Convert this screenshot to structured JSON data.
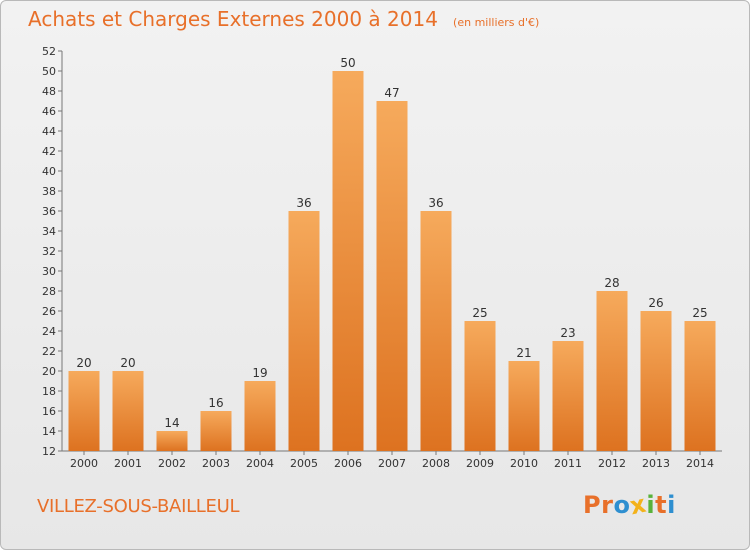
{
  "header": {
    "title": "Achats et Charges Externes 2000 à 2014",
    "unit": "(en milliers d'€)"
  },
  "footer": {
    "town": "VILLEZ-SOUS-BAILLEUL",
    "logo": [
      "P",
      "r",
      "o",
      "x",
      "i",
      "t",
      "i"
    ]
  },
  "colors": {
    "accent": "#e8702a",
    "bar_top": "#f6aa5c",
    "bar_bottom": "#dd7220",
    "logo_letters": [
      "#e8702a",
      "#e8702a",
      "#2e8fd0",
      "#f3b21b",
      "#59b23b",
      "#e8702a",
      "#2e8fd0"
    ]
  },
  "chart_data": {
    "type": "bar",
    "title": "Achats et Charges Externes 2000 à 2014",
    "subtitle": "(en milliers d'€)",
    "xlabel": "",
    "ylabel": "",
    "categories": [
      "2000",
      "2001",
      "2002",
      "2003",
      "2004",
      "2005",
      "2006",
      "2007",
      "2008",
      "2009",
      "2010",
      "2011",
      "2012",
      "2013",
      "2014"
    ],
    "values": [
      20,
      20,
      14,
      16,
      19,
      36,
      50,
      47,
      36,
      25,
      21,
      23,
      28,
      26,
      25
    ],
    "data_labels": [
      "20",
      "20",
      "14",
      "16",
      "19",
      "36",
      "50",
      "47",
      "36",
      "25",
      "21",
      "23",
      "28",
      "26",
      "25"
    ],
    "ylim": [
      12,
      52
    ],
    "yticks": [
      "12",
      "14",
      "16",
      "18",
      "20",
      "22",
      "24",
      "26",
      "28",
      "30",
      "32",
      "34",
      "36",
      "38",
      "40",
      "42",
      "44",
      "46",
      "48",
      "50",
      "52"
    ],
    "grid": false,
    "legend": "none"
  }
}
